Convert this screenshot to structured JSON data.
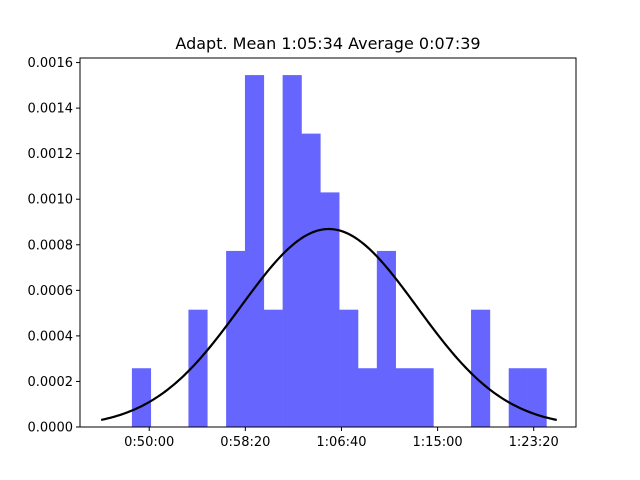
{
  "chart_data": {
    "type": "bar",
    "title": "Adapt. Mean 1:05:34 Average 0:07:39",
    "xlabel": "",
    "ylabel": "",
    "x_unit": "seconds",
    "xlim": [
      2640,
      5220
    ],
    "ylim": [
      0,
      0.00162
    ],
    "x_ticks": [
      {
        "value": 3000,
        "label": "0:50:00"
      },
      {
        "value": 3500,
        "label": "0:58:20"
      },
      {
        "value": 4000,
        "label": "1:06:40"
      },
      {
        "value": 4500,
        "label": "1:15:00"
      },
      {
        "value": 5000,
        "label": "1:23:20"
      }
    ],
    "y_ticks": [
      {
        "value": 0.0,
        "label": "0.0000"
      },
      {
        "value": 0.0002,
        "label": "0.0002"
      },
      {
        "value": 0.0004,
        "label": "0.0004"
      },
      {
        "value": 0.0006,
        "label": "0.0006"
      },
      {
        "value": 0.0008,
        "label": "0.0008"
      },
      {
        "value": 0.001,
        "label": "0.0010"
      },
      {
        "value": 0.0012,
        "label": "0.0012"
      },
      {
        "value": 0.0014,
        "label": "0.0014"
      },
      {
        "value": 0.0016,
        "label": "0.0016"
      }
    ],
    "bin_width": 98,
    "bins": [
      {
        "start": 2910,
        "value": 0.000258
      },
      {
        "start": 3008,
        "value": 0.0
      },
      {
        "start": 3106,
        "value": 0.0
      },
      {
        "start": 3204,
        "value": 0.000515
      },
      {
        "start": 3302,
        "value": 0.0
      },
      {
        "start": 3400,
        "value": 0.000773
      },
      {
        "start": 3498,
        "value": 0.001545
      },
      {
        "start": 3596,
        "value": 0.000515
      },
      {
        "start": 3694,
        "value": 0.001545
      },
      {
        "start": 3792,
        "value": 0.001288
      },
      {
        "start": 3890,
        "value": 0.00103
      },
      {
        "start": 3988,
        "value": 0.000515
      },
      {
        "start": 4086,
        "value": 0.000258
      },
      {
        "start": 4184,
        "value": 0.000773
      },
      {
        "start": 4282,
        "value": 0.000258
      },
      {
        "start": 4380,
        "value": 0.000258
      },
      {
        "start": 4478,
        "value": 0.0
      },
      {
        "start": 4576,
        "value": 0.0
      },
      {
        "start": 4674,
        "value": 0.000515
      },
      {
        "start": 4772,
        "value": 0.0
      },
      {
        "start": 4870,
        "value": 0.000258
      },
      {
        "start": 4968,
        "value": 0.000258
      }
    ],
    "bar_color": "#6666ff",
    "curve": {
      "type": "normal-pdf",
      "mean": 3934,
      "std": 459,
      "x_range": [
        2750,
        5120
      ],
      "color": "#000000"
    },
    "grid": false,
    "legend": "none"
  }
}
